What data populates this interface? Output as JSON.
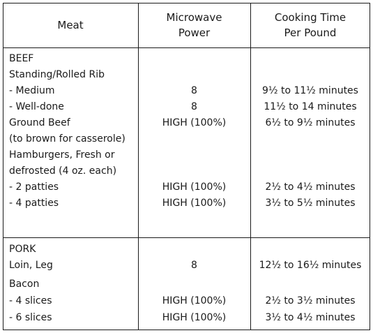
{
  "header": {
    "meat": "Meat",
    "power_line1": "Microwave",
    "power_line2": "Power",
    "time_line1": "Cooking Time",
    "time_line2": "Per Pound"
  },
  "beef": {
    "title": "BEEF",
    "rows": [
      {
        "meat": "Standing/Rolled Rib",
        "power": "",
        "time": ""
      },
      {
        "meat": "- Medium",
        "power": "8",
        "time": "9½ to 11½ minutes"
      },
      {
        "meat": "- Well-done",
        "power": "8",
        "time": "11½ to 14 minutes"
      },
      {
        "meat": "Ground Beef",
        "power": "HIGH (100%)",
        "time": "6½ to 9½ minutes"
      },
      {
        "meat": "(to brown for casserole)",
        "power": "",
        "time": ""
      },
      {
        "meat": "Hamburgers, Fresh or",
        "power": "",
        "time": ""
      },
      {
        "meat": "defrosted (4 oz. each)",
        "power": "",
        "time": ""
      },
      {
        "meat": "- 2 patties",
        "power": "HIGH (100%)",
        "time": "2½ to 4½ minutes"
      },
      {
        "meat": "- 4 patties",
        "power": "HIGH (100%)",
        "time": "3½ to 5½ minutes"
      }
    ]
  },
  "pork": {
    "title": "PORK",
    "rows": [
      {
        "meat": "Loin, Leg",
        "power": "8",
        "time": "12½ to 16½ minutes"
      },
      {
        "meat": "Bacon",
        "power": "",
        "time": ""
      },
      {
        "meat": "- 4 slices",
        "power": "HIGH (100%)",
        "time": "2½ to 3½ minutes"
      },
      {
        "meat": "- 6 slices",
        "power": "HIGH (100%)",
        "time": "3½ to 4½ minutes"
      }
    ]
  }
}
